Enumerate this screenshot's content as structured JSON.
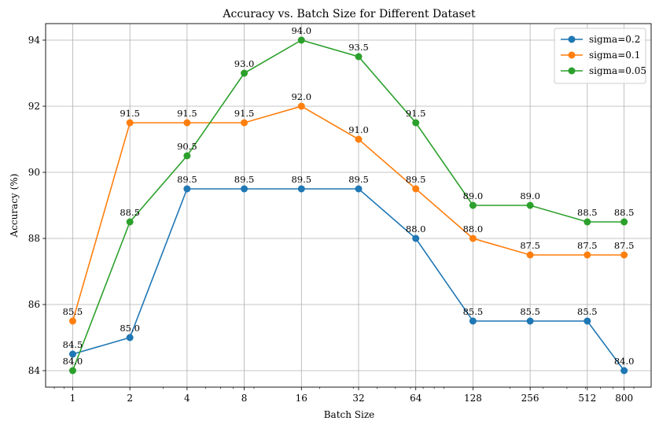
{
  "chart_data": {
    "type": "line",
    "title": "Accuracy vs. Batch Size for Different Dataset",
    "xlabel": "Batch Size",
    "ylabel": "Accuracy (%)",
    "x_scale": "log2",
    "x": [
      1,
      2,
      4,
      8,
      16,
      32,
      64,
      128,
      256,
      512,
      800
    ],
    "x_tick_labels": [
      "1",
      "2",
      "4",
      "8",
      "16",
      "32",
      "64",
      "128",
      "256",
      "512",
      "800"
    ],
    "ylim": [
      83.5,
      94.5
    ],
    "y_ticks": [
      84,
      86,
      88,
      90,
      92,
      94
    ],
    "grid": true,
    "legend_position": "top-right",
    "series": [
      {
        "name": "sigma=0.2",
        "color": "#1f77b4",
        "values": [
          84.5,
          85.0,
          89.5,
          89.5,
          89.5,
          89.5,
          88.0,
          85.5,
          85.5,
          85.5,
          84.0
        ]
      },
      {
        "name": "sigma=0.1",
        "color": "#ff7f0e",
        "values": [
          85.5,
          91.5,
          91.5,
          91.5,
          92.0,
          91.0,
          89.5,
          88.0,
          87.5,
          87.5,
          87.5
        ]
      },
      {
        "name": "sigma=0.05",
        "color": "#2ca02c",
        "values": [
          84.0,
          88.5,
          90.5,
          93.0,
          94.0,
          93.5,
          91.5,
          89.0,
          89.0,
          88.5,
          88.5
        ]
      }
    ]
  }
}
